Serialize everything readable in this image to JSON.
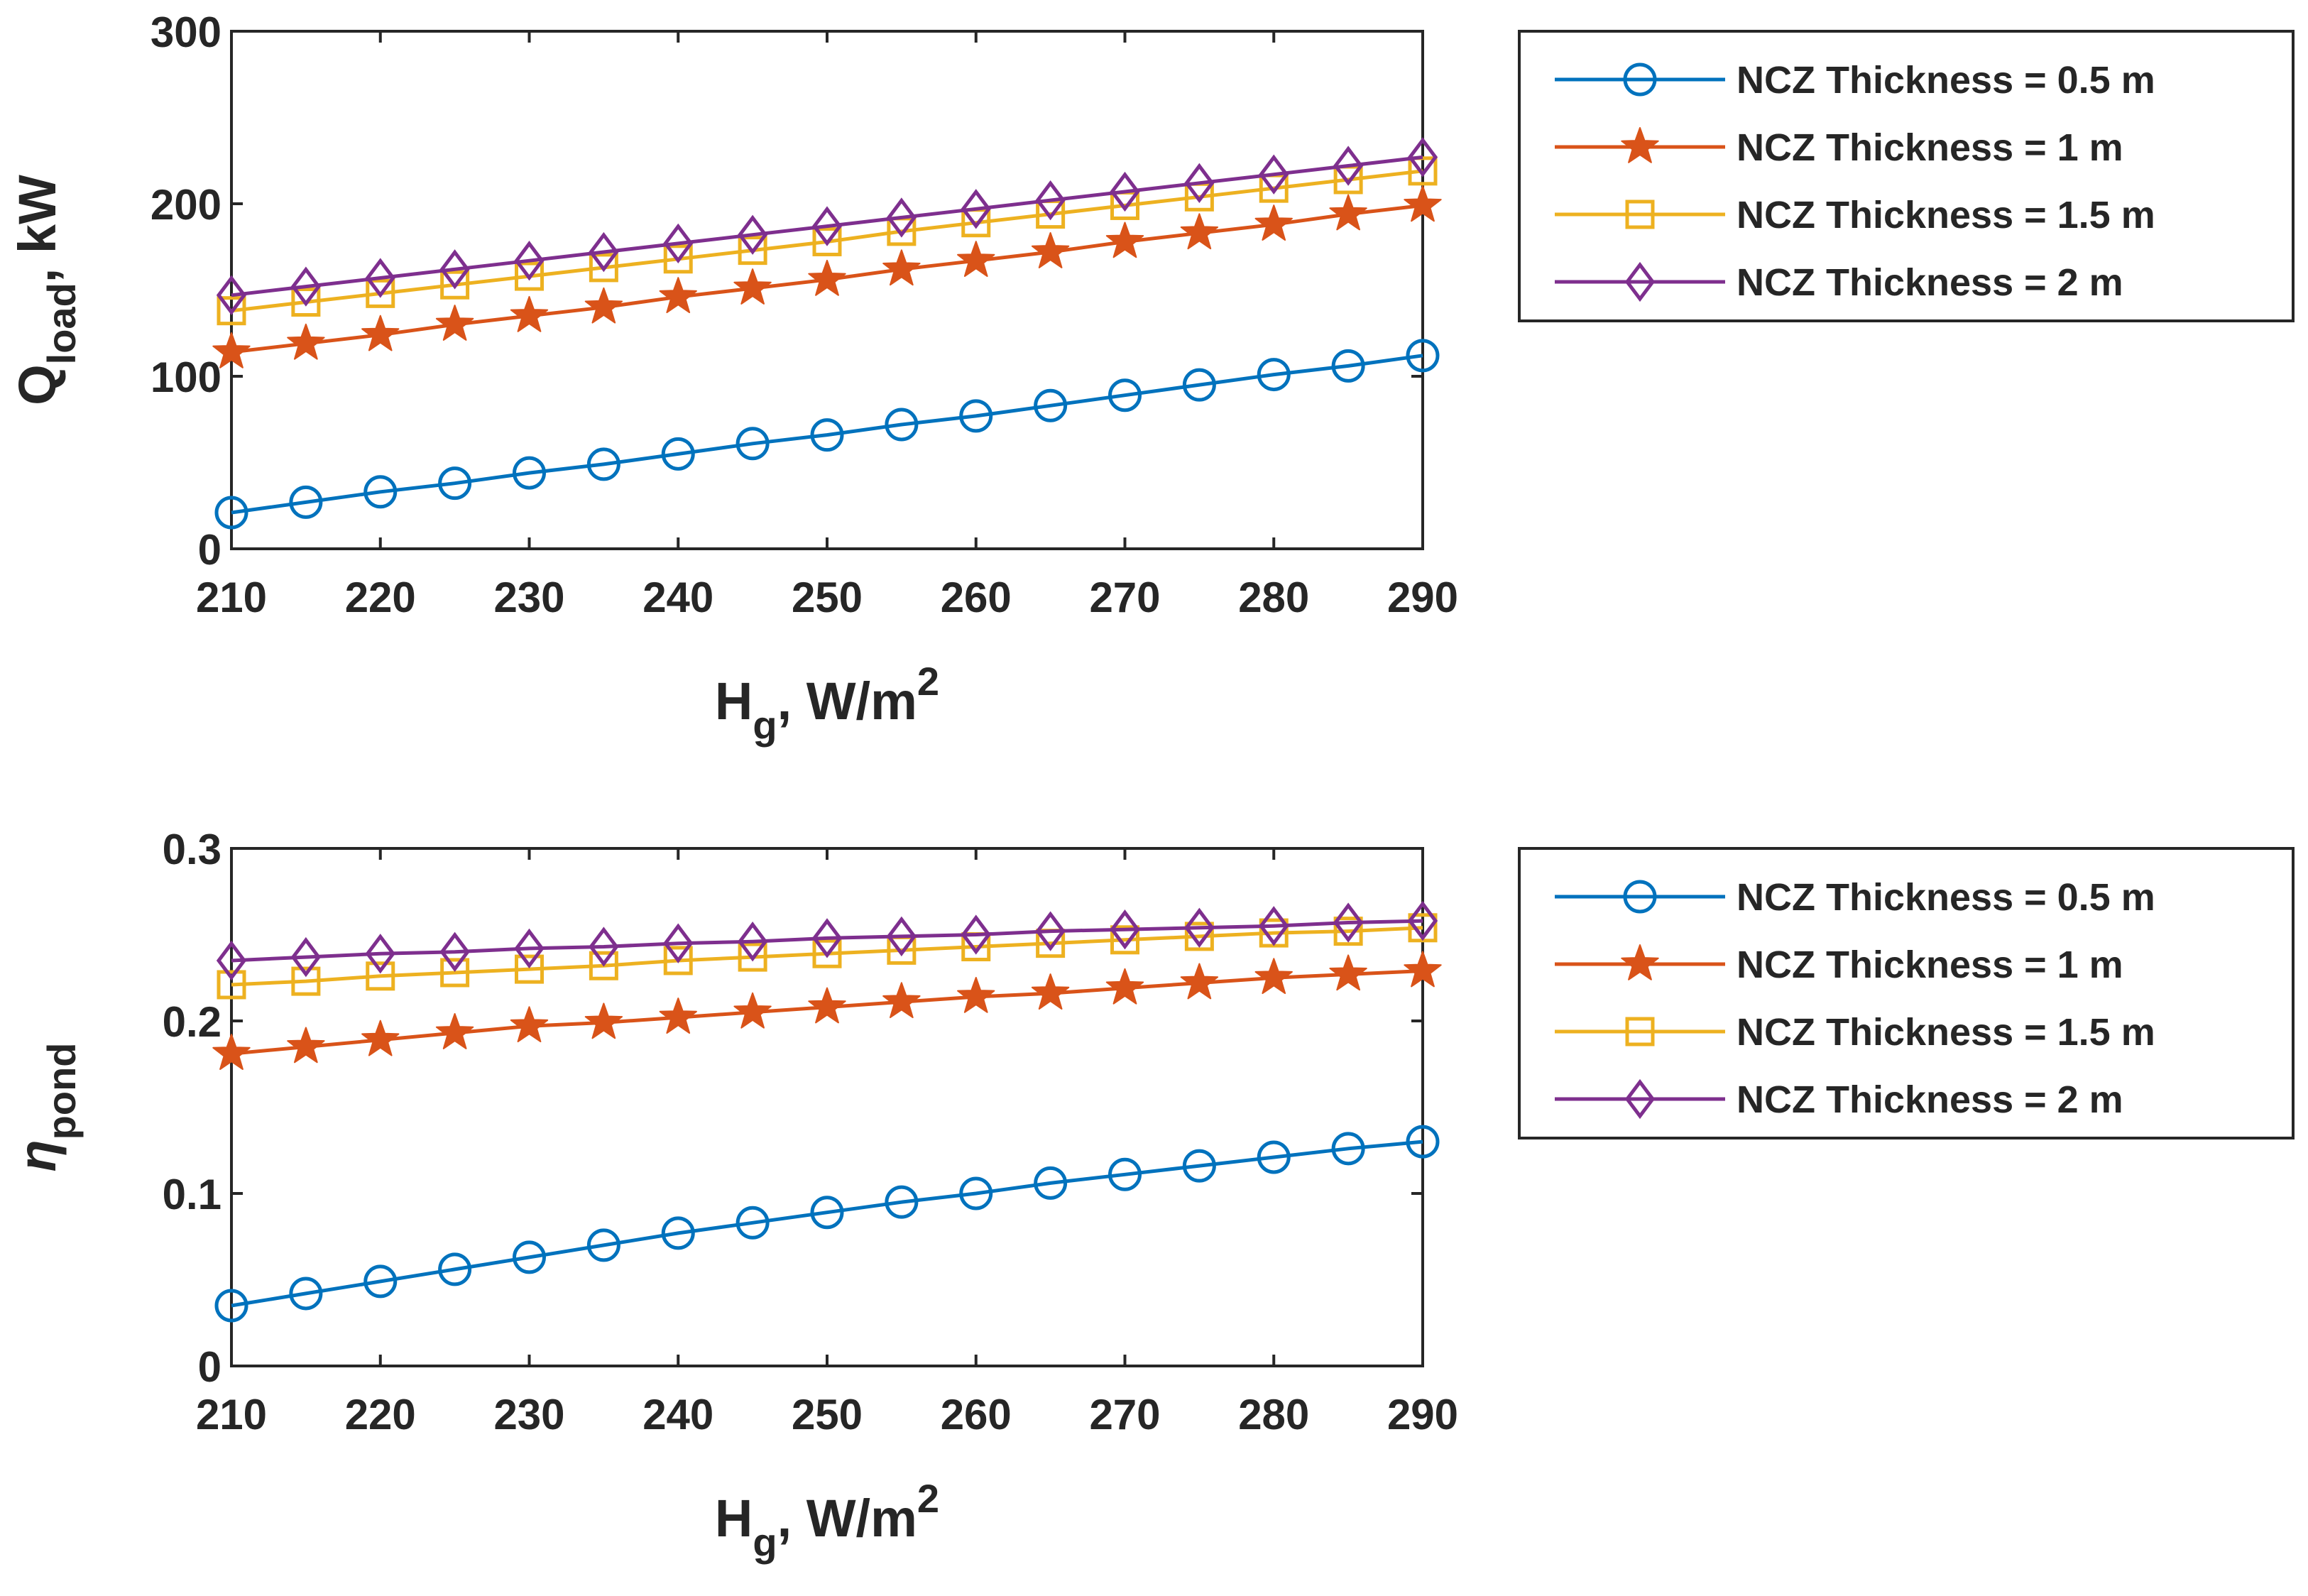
{
  "chart_data": [
    {
      "type": "line",
      "ylabel": {
        "main": "Q",
        "sub": "load",
        "suffix": ", kW"
      },
      "xlabel": {
        "main": "H",
        "sub": "g",
        "suffix": ", W/m",
        "sup": "2"
      },
      "xlim": [
        210,
        290
      ],
      "ylim": [
        0,
        300
      ],
      "xticks": [
        "210",
        "220",
        "230",
        "240",
        "250",
        "260",
        "270",
        "280",
        "290"
      ],
      "yticks": [
        "0",
        "100",
        "200",
        "300"
      ],
      "x": [
        210,
        215,
        220,
        225,
        230,
        235,
        240,
        245,
        250,
        255,
        260,
        265,
        270,
        275,
        280,
        285,
        290
      ],
      "legend_position": "outside-right",
      "grid": false,
      "series": [
        {
          "name": "NCZ Thickness = 0.5 m",
          "color": "#0072BD",
          "marker": "circle",
          "values": [
            21,
            27,
            33,
            38,
            44,
            49,
            55,
            61,
            66,
            72,
            77,
            83,
            89,
            95,
            101,
            106,
            112
          ]
        },
        {
          "name": "NCZ Thickness = 1 m",
          "color": "#D95319",
          "marker": "star",
          "values": [
            114,
            119,
            124,
            130,
            135,
            140,
            146,
            151,
            156,
            162,
            167,
            172,
            178,
            183,
            188,
            194,
            199
          ]
        },
        {
          "name": "NCZ Thickness = 1.5 m",
          "color": "#EDB120",
          "marker": "square",
          "values": [
            138,
            143,
            148,
            153,
            158,
            163,
            168,
            173,
            178,
            184,
            189,
            194,
            199,
            204,
            209,
            214,
            219
          ]
        },
        {
          "name": "NCZ Thickness = 2 m",
          "color": "#7E2F8E",
          "marker": "diamond",
          "values": [
            147,
            152,
            157,
            162,
            167,
            172,
            177,
            182,
            187,
            192,
            197,
            202,
            207,
            212,
            217,
            222,
            227
          ]
        }
      ]
    },
    {
      "type": "line",
      "ylabel": {
        "main": "η",
        "sub": "pond",
        "suffix": ""
      },
      "xlabel": {
        "main": "H",
        "sub": "g",
        "suffix": ", W/m",
        "sup": "2"
      },
      "xlim": [
        210,
        290
      ],
      "ylim": [
        0,
        0.3
      ],
      "xticks": [
        "210",
        "220",
        "230",
        "240",
        "250",
        "260",
        "270",
        "280",
        "290"
      ],
      "yticks": [
        "0",
        "0.1",
        "0.2",
        "0.3"
      ],
      "x": [
        210,
        215,
        220,
        225,
        230,
        235,
        240,
        245,
        250,
        255,
        260,
        265,
        270,
        275,
        280,
        285,
        290
      ],
      "legend_position": "outside-right",
      "grid": false,
      "series": [
        {
          "name": "NCZ Thickness = 0.5 m",
          "color": "#0072BD",
          "marker": "circle",
          "values": [
            0.035,
            0.042,
            0.049,
            0.056,
            0.063,
            0.07,
            0.077,
            0.083,
            0.089,
            0.095,
            0.1,
            0.106,
            0.111,
            0.116,
            0.121,
            0.126,
            0.13
          ]
        },
        {
          "name": "NCZ Thickness = 1 m",
          "color": "#D95319",
          "marker": "star",
          "values": [
            0.181,
            0.185,
            0.189,
            0.193,
            0.197,
            0.199,
            0.202,
            0.205,
            0.208,
            0.211,
            0.214,
            0.216,
            0.219,
            0.222,
            0.225,
            0.227,
            0.229
          ]
        },
        {
          "name": "NCZ Thickness = 1.5 m",
          "color": "#EDB120",
          "marker": "square",
          "values": [
            0.221,
            0.223,
            0.226,
            0.228,
            0.23,
            0.232,
            0.235,
            0.237,
            0.239,
            0.241,
            0.243,
            0.245,
            0.247,
            0.249,
            0.251,
            0.252,
            0.254
          ]
        },
        {
          "name": "NCZ Thickness = 2 m",
          "color": "#7E2F8E",
          "marker": "diamond",
          "values": [
            0.235,
            0.237,
            0.239,
            0.24,
            0.242,
            0.243,
            0.245,
            0.246,
            0.248,
            0.249,
            0.25,
            0.252,
            0.253,
            0.254,
            0.255,
            0.257,
            0.258
          ]
        }
      ]
    }
  ]
}
